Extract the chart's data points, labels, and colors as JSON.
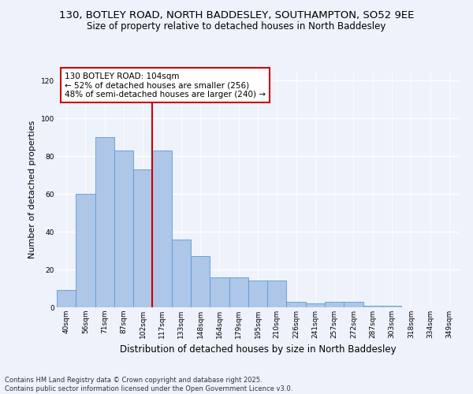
{
  "title_line1": "130, BOTLEY ROAD, NORTH BADDESLEY, SOUTHAMPTON, SO52 9EE",
  "title_line2": "Size of property relative to detached houses in North Baddesley",
  "xlabel": "Distribution of detached houses by size in North Baddesley",
  "ylabel": "Number of detached properties",
  "categories": [
    "40sqm",
    "56sqm",
    "71sqm",
    "87sqm",
    "102sqm",
    "117sqm",
    "133sqm",
    "148sqm",
    "164sqm",
    "179sqm",
    "195sqm",
    "210sqm",
    "226sqm",
    "241sqm",
    "257sqm",
    "272sqm",
    "287sqm",
    "303sqm",
    "318sqm",
    "334sqm",
    "349sqm"
  ],
  "values": [
    9,
    60,
    90,
    83,
    73,
    83,
    36,
    27,
    16,
    16,
    14,
    14,
    3,
    2,
    3,
    3,
    1,
    1,
    0,
    0,
    0
  ],
  "bar_color": "#aec6e8",
  "bar_edge_color": "#5b9bd5",
  "vline_x": 4.5,
  "vline_color": "#cc0000",
  "annotation_text": "130 BOTLEY ROAD: 104sqm\n← 52% of detached houses are smaller (256)\n48% of semi-detached houses are larger (240) →",
  "annotation_box_color": "#cc0000",
  "annotation_facecolor": "white",
  "ylim": [
    0,
    125
  ],
  "yticks": [
    0,
    20,
    40,
    60,
    80,
    100,
    120
  ],
  "background_color": "#eef2fb",
  "grid_color": "#ffffff",
  "footnote": "Contains HM Land Registry data © Crown copyright and database right 2025.\nContains public sector information licensed under the Open Government Licence v3.0.",
  "title_fontsize": 9.5,
  "subtitle_fontsize": 8.5,
  "xlabel_fontsize": 8.5,
  "ylabel_fontsize": 8,
  "tick_fontsize": 6.5,
  "annotation_fontsize": 7.5,
  "footnote_fontsize": 6
}
